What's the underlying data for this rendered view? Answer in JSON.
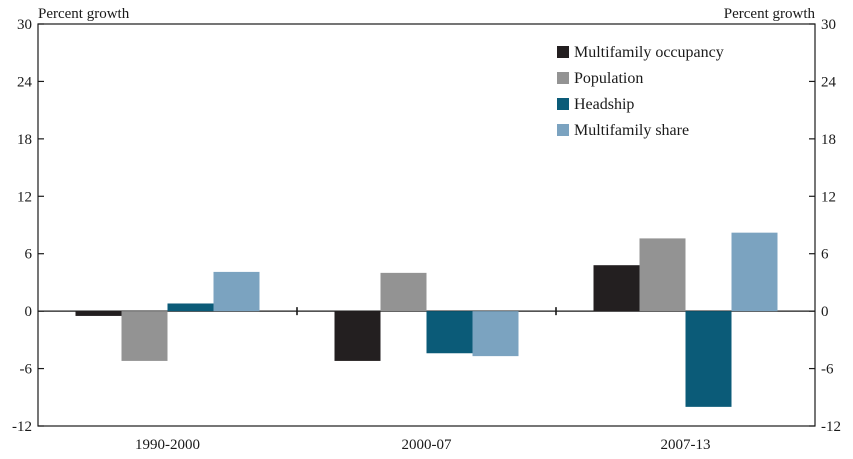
{
  "chart_data": {
    "type": "bar",
    "title": "",
    "left_axis_label": "Percent growth",
    "right_axis_label": "Percent growth",
    "categories": [
      "1990-2000",
      "2000-07",
      "2007-13"
    ],
    "ylim": [
      -12,
      30
    ],
    "yticks": [
      -12,
      -6,
      0,
      6,
      12,
      18,
      24,
      30
    ],
    "grid": false,
    "legend_position": "top-right",
    "series": [
      {
        "name": "Multifamily occupancy",
        "color": "#231f20",
        "values": [
          -0.5,
          -5.2,
          4.8
        ]
      },
      {
        "name": "Population",
        "color": "#939393",
        "values": [
          -5.2,
          4.0,
          7.6
        ]
      },
      {
        "name": "Headship",
        "color": "#0b5b78",
        "values": [
          0.8,
          -4.4,
          -10.0
        ]
      },
      {
        "name": "Multifamily share",
        "color": "#7ba3c0",
        "values": [
          4.1,
          -4.7,
          8.2
        ]
      }
    ]
  }
}
